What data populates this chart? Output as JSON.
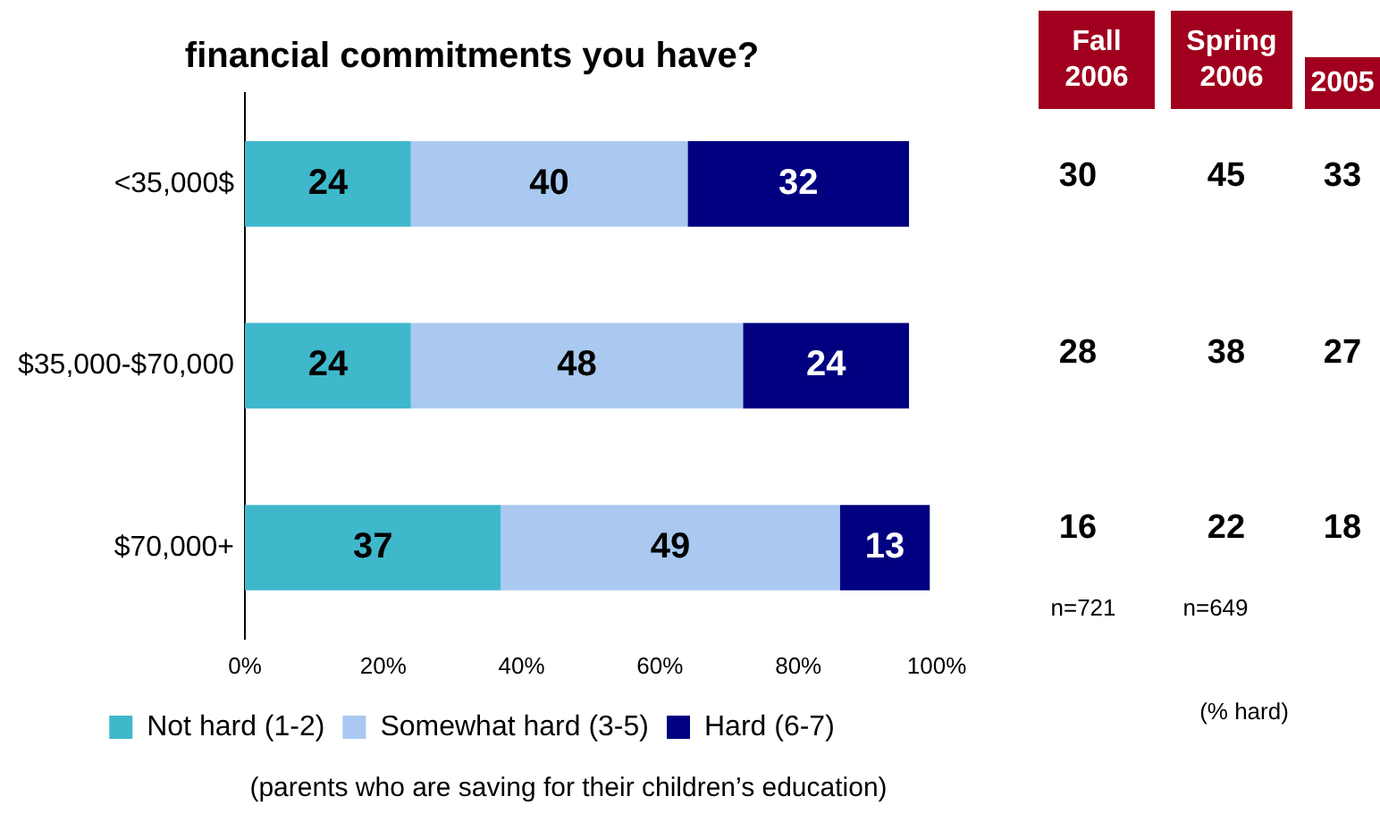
{
  "chart_data": {
    "type": "bar",
    "orientation": "horizontal",
    "stacked": true,
    "title": "financial commitments you have?",
    "categories": [
      "<35,000$",
      "$35,000-$70,000",
      "$70,000+"
    ],
    "series": [
      {
        "name": "Not hard (1-2)",
        "color": "#3fb8cc",
        "values": [
          24,
          24,
          37
        ]
      },
      {
        "name": "Somewhat hard (3-5)",
        "color": "#a9c9f0",
        "values": [
          40,
          48,
          49
        ]
      },
      {
        "name": "Hard (6-7)",
        "color": "#000080",
        "values": [
          32,
          24,
          13
        ]
      }
    ],
    "xlim": [
      0,
      100
    ],
    "xticks": [
      {
        "value": 0,
        "label": "0%"
      },
      {
        "value": 20,
        "label": "20%"
      },
      {
        "value": 40,
        "label": "40%"
      },
      {
        "value": 60,
        "label": "60%"
      },
      {
        "value": 80,
        "label": "80%"
      },
      {
        "value": 100,
        "label": "100%"
      }
    ],
    "data_labels": true,
    "grid": false,
    "legend": "bottom",
    "annotations": [
      "Fall 2006",
      "Spring 2006",
      "2005",
      "30",
      "45",
      "33",
      "28",
      "38",
      "27",
      "16",
      "22",
      "18",
      "n=721",
      "n=649",
      "(% hard)",
      "(parents who are saving for their children’s education)"
    ]
  }
}
